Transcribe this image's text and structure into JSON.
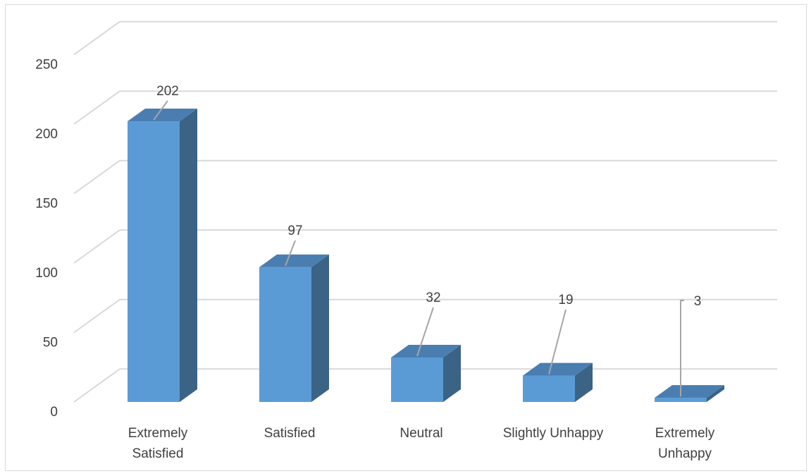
{
  "chart_data": {
    "type": "bar",
    "style": "3d-column",
    "categories": [
      [
        "Extremely",
        "Satisfied"
      ],
      [
        "Satisfied"
      ],
      [
        "Neutral"
      ],
      [
        "Slightly Unhappy"
      ],
      [
        "Extremely",
        "Unhappy"
      ]
    ],
    "values": [
      202,
      97,
      32,
      19,
      3
    ],
    "data_labels": [
      "202",
      "97",
      "32",
      "19",
      "3"
    ],
    "y_ticks": [
      "0",
      "50",
      "100",
      "150",
      "200",
      "250"
    ],
    "ylim": [
      0,
      250
    ],
    "grid": true,
    "legend": "none",
    "colors": {
      "front": "#5b9bd5",
      "side": "#3a6386",
      "top": "#4a7eb0",
      "grid": "#d9d9d9",
      "leader": "#a6a6a6"
    }
  }
}
